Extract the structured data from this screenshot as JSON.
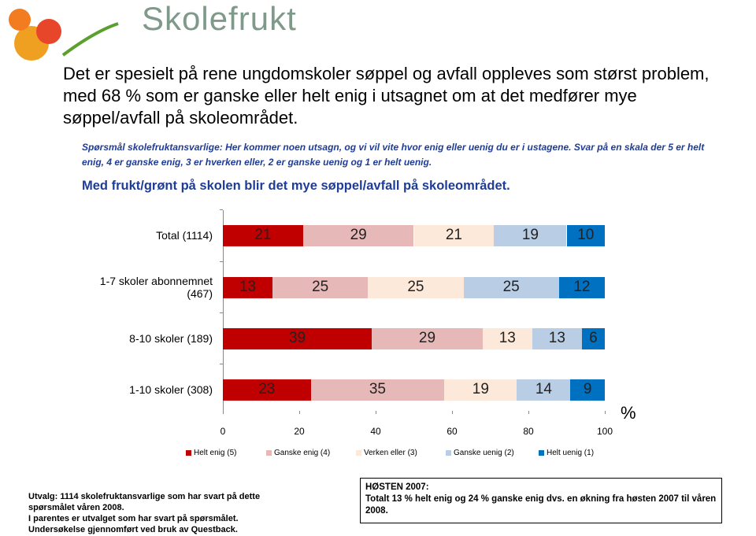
{
  "header": {
    "logo": "Skolefrukt",
    "headline": "Det er spesielt på rene ungdomskoler søppel og avfall oppleves som størst problem, med 68 % som er ganske eller helt enig i utsagnet om at det medfører mye søppel/avfall på skoleområdet.",
    "question": "Spørsmål  skolefruktansvarlige:  Her kommer noen utsagn, og vi vil vite hvor enig eller uenig du er i ustagene. Svar på en skala der 5 er helt enig, 4 er ganske enig, 3 er hverken eller, 2 er ganske uenig og 1 er helt uenig."
  },
  "chart_data": {
    "type": "stacked-bar-horizontal",
    "title": "Med frukt/grønt på skolen blir det mye søppel/avfall på skoleområdet.",
    "categories": [
      "Total  (1114)",
      "1-7 skoler abonnemnet (467)",
      "8-10 skoler (189)",
      "1-10 skoler (308)"
    ],
    "series": [
      {
        "name": "Helt enig (5)",
        "color": "#c00000",
        "values": [
          21,
          13,
          39,
          23
        ]
      },
      {
        "name": "Ganske enig (4)",
        "color": "#e6b9b8",
        "values": [
          29,
          25,
          29,
          35
        ]
      },
      {
        "name": "Verken eller (3)",
        "color": "#fde9d9",
        "values": [
          21,
          25,
          13,
          19
        ]
      },
      {
        "name": "Ganske uenig (2)",
        "color": "#b9cde5",
        "values": [
          19,
          25,
          13,
          14
        ]
      },
      {
        "name": "Helt uenig (1)",
        "color": "#0070c0",
        "values": [
          10,
          12,
          6,
          9
        ]
      }
    ],
    "xlim": [
      0,
      100
    ],
    "xticks": [
      0,
      20,
      40,
      60,
      80,
      100
    ],
    "x_label": "%",
    "legend": "bottom"
  },
  "footer": {
    "notes": [
      "Utvalg:  1114 skolefruktansvarlige som har svart på dette spørsmålet våren 2008.",
      "I parentes er utvalget som har svart på spørsmålet.",
      "Undersøkelse gjennomført ved bruk av Questback."
    ],
    "box_title": "HØSTEN 2007:",
    "box_text": "Totalt 13 % helt enig og 24 % ganske enig dvs. en økning fra høsten 2007 til våren 2008."
  }
}
